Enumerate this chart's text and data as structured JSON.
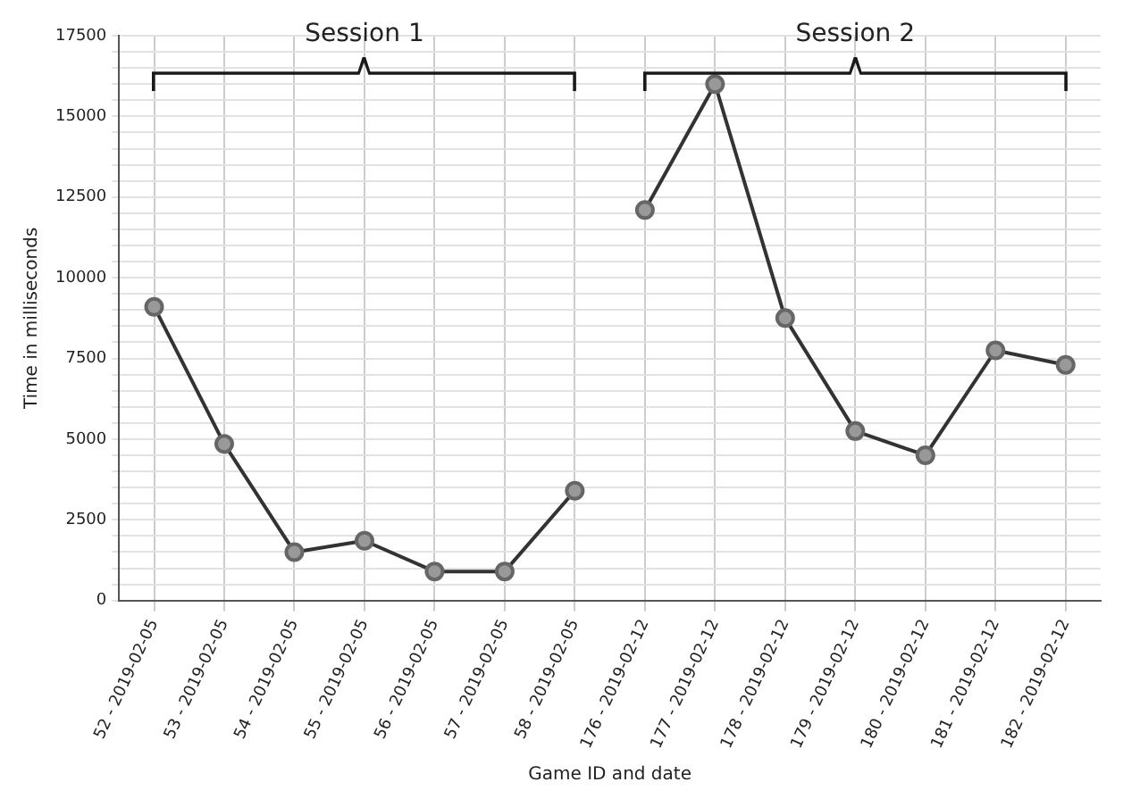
{
  "chart_data": {
    "type": "line",
    "xlabel": "Game ID and date",
    "ylabel": "Time in milliseconds",
    "categories": [
      "52 - 2019-02-05",
      "53 - 2019-02-05",
      "54 - 2019-02-05",
      "55 - 2019-02-05",
      "56 - 2019-02-05",
      "57 - 2019-02-05",
      "58 - 2019-02-05",
      "176 - 2019-02-12",
      "177 - 2019-02-12",
      "178 - 2019-02-12",
      "179 - 2019-02-12",
      "180 - 2019-02-12",
      "181 - 2019-02-12",
      "182 - 2019-02-12"
    ],
    "series": [
      {
        "color": "#333333",
        "values": [
          9100,
          4850,
          1500,
          1850,
          900,
          900,
          3400,
          null,
          null,
          null,
          null,
          null,
          null,
          null
        ]
      },
      {
        "color": "#333333",
        "values": [
          null,
          null,
          null,
          null,
          null,
          null,
          null,
          12100,
          16000,
          8750,
          5250,
          4500,
          7750,
          7300
        ]
      }
    ],
    "annotations": [
      "Session 1",
      "Session 2"
    ],
    "ylim": [
      0,
      17500
    ],
    "yticks": [
      0,
      {
        "value": 500,
        "label": null
      },
      {
        "value": 1000,
        "label": null
      },
      {
        "value": 1500,
        "label": null
      },
      {
        "value": 2000,
        "label": null
      },
      2500,
      {
        "value": 3000,
        "label": null
      },
      {
        "value": 3500,
        "label": null
      },
      {
        "value": 4000,
        "label": null
      },
      {
        "value": 4500,
        "label": null
      },
      5000,
      {
        "value": 5500,
        "label": null
      },
      {
        "value": 6000,
        "label": null
      },
      {
        "value": 6500,
        "label": null
      },
      {
        "value": 7000,
        "label": null
      },
      7500,
      {
        "value": 8000,
        "label": null
      },
      {
        "value": 8500,
        "label": null
      },
      {
        "value": 9000,
        "label": null
      },
      {
        "value": 9500,
        "label": null
      },
      10000,
      {
        "value": 10500,
        "label": null
      },
      {
        "value": 11000,
        "label": null
      },
      {
        "value": 11500,
        "label": null
      },
      {
        "value": 12000,
        "label": null
      },
      12500,
      {
        "value": 13000,
        "label": null
      },
      {
        "value": 13500,
        "label": null
      },
      {
        "value": 14000,
        "label": null
      },
      {
        "value": 14500,
        "label": null
      },
      15000,
      {
        "value": 15500,
        "label": null
      },
      {
        "value": 16000,
        "label": null
      },
      {
        "value": 16500,
        "label": null
      },
      {
        "value": 17000,
        "label": null
      },
      17500
    ],
    "grid": true,
    "legend": false,
    "marker": "circle",
    "line_style": "solid"
  }
}
